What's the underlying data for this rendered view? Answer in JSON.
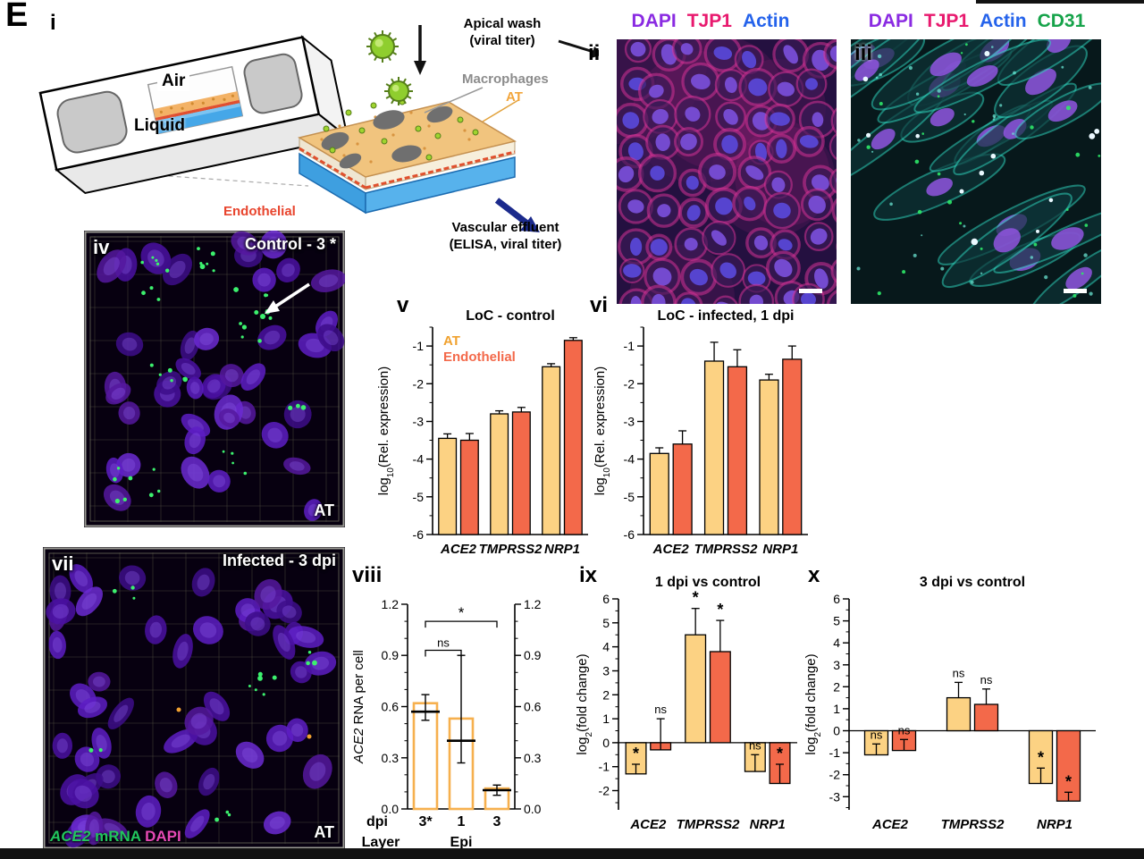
{
  "figure_label": "E",
  "schematic": {
    "panel_label": "i",
    "air": "Air",
    "liquid": "Liquid",
    "apical_wash_line1": "Apical wash",
    "apical_wash_line2": "(viral titer)",
    "macrophages": "Macrophages",
    "at": "AT",
    "endothelial": "Endothelial",
    "vascular_line1": "Vascular effluent",
    "vascular_line2": "(ELISA, viral titer)"
  },
  "panel_ii": {
    "label": "ii",
    "markers": [
      {
        "text": "DAPI",
        "color": "#8a2be2"
      },
      {
        "text": "TJP1",
        "color": "#e8196e"
      },
      {
        "text": "Actin",
        "color": "#2563eb"
      }
    ]
  },
  "panel_iii": {
    "label": "iii",
    "markers": [
      {
        "text": "DAPI",
        "color": "#8a2be2"
      },
      {
        "text": "TJP1",
        "color": "#e8196e"
      },
      {
        "text": "Actin",
        "color": "#2563eb"
      },
      {
        "text": "CD31",
        "color": "#16a34a"
      }
    ]
  },
  "panel_iv": {
    "label": "iv",
    "title": "Control - 3 *",
    "corner_label": "AT"
  },
  "panel_vii": {
    "label": "vii",
    "title": "Infected - 3 dpi",
    "corner_label": "AT",
    "caption": [
      {
        "text": "ACE2",
        "color": "#22c55e",
        "italic": true
      },
      {
        "text": " mRNA ",
        "color": "#22c55e"
      },
      {
        "text": "DAPI",
        "color": "#e649b5"
      }
    ]
  },
  "chart_data": [
    {
      "id": "v",
      "panel_label": "v",
      "type": "bar",
      "title": "LoC - control",
      "ylabel_parts": [
        {
          "text": "log"
        },
        {
          "text": "10",
          "sub": true
        },
        {
          "text": "(Rel. expression)"
        }
      ],
      "ylim": [
        -6,
        -0.5
      ],
      "yticks": [
        -1,
        -2,
        -3,
        -4,
        -5,
        -6
      ],
      "baseline": -6,
      "categories": [
        "ACE2",
        "TMPRSS2",
        "NRP1"
      ],
      "legend": true,
      "series": [
        {
          "name": "AT",
          "color": "#fcd283",
          "values": [
            -3.45,
            -2.8,
            -1.55
          ],
          "errors": [
            0.12,
            0.08,
            0.08
          ]
        },
        {
          "name": "Endothelial",
          "color": "#f3694a",
          "values": [
            -3.5,
            -2.75,
            -0.85
          ],
          "errors": [
            0.18,
            0.12,
            0.07
          ]
        }
      ]
    },
    {
      "id": "vi",
      "panel_label": "vi",
      "type": "bar",
      "title": "LoC - infected, 1 dpi",
      "ylabel_parts": [
        {
          "text": "log"
        },
        {
          "text": "10",
          "sub": true
        },
        {
          "text": "(Rel. expression)"
        }
      ],
      "ylim": [
        -6,
        -0.5
      ],
      "yticks": [
        -1,
        -2,
        -3,
        -4,
        -5,
        -6
      ],
      "baseline": -6,
      "categories": [
        "ACE2",
        "TMPRSS2",
        "NRP1"
      ],
      "legend": false,
      "series": [
        {
          "name": "AT",
          "color": "#fcd283",
          "values": [
            -3.85,
            -1.4,
            -1.9
          ],
          "errors": [
            0.15,
            0.5,
            0.15
          ]
        },
        {
          "name": "Endothelial",
          "color": "#f3694a",
          "values": [
            -3.6,
            -1.55,
            -1.35
          ],
          "errors": [
            0.35,
            0.45,
            0.35
          ]
        }
      ]
    },
    {
      "id": "viii",
      "panel_label": "viii",
      "type": "bar-open",
      "ylabel_parts": [
        {
          "text": "ACE2",
          "italic": true
        },
        {
          "text": " RNA per cell"
        }
      ],
      "ylim": [
        0,
        1.2
      ],
      "yticks": [
        0,
        0.3,
        0.6,
        0.9,
        1.2
      ],
      "right_axis": true,
      "bar_color": "#f6b04e",
      "categories": [
        "3*",
        "1",
        "3"
      ],
      "values": [
        0.62,
        0.53,
        0.12
      ],
      "means": [
        0.57,
        0.4,
        0.11
      ],
      "err_low": [
        0.05,
        0.13,
        0.03
      ],
      "err_high": [
        0.1,
        0.5,
        0.03
      ],
      "x_row_label": "dpi",
      "layer_row_label": "Layer",
      "layer_value": "Epi",
      "brackets": [
        {
          "from": 0,
          "to": 1,
          "label": "ns",
          "y": 0.93
        },
        {
          "from": 0,
          "to": 2,
          "label": "*",
          "y": 1.1
        }
      ]
    },
    {
      "id": "ix",
      "panel_label": "ix",
      "type": "bar",
      "title": "1 dpi vs control",
      "ylabel_parts": [
        {
          "text": "log"
        },
        {
          "text": "2",
          "sub": true
        },
        {
          "text": "(fold change)"
        }
      ],
      "ylim": [
        -2.8,
        6
      ],
      "yticks": [
        6,
        5,
        4,
        3,
        2,
        1,
        0,
        -1,
        -2
      ],
      "baseline": 0,
      "categories": [
        "ACE2",
        "TMPRSS2",
        "NRP1"
      ],
      "legend": false,
      "series": [
        {
          "name": "AT",
          "color": "#fcd283",
          "values": [
            -1.3,
            4.5,
            -1.2
          ],
          "errors": [
            0.4,
            1.1,
            0.7
          ],
          "sig": [
            "*",
            "*",
            "ns"
          ]
        },
        {
          "name": "Endothelial",
          "color": "#f3694a",
          "values": [
            -0.3,
            3.8,
            -1.7
          ],
          "errors": [
            1.3,
            1.3,
            0.8
          ],
          "sig": [
            "ns",
            "*",
            "*"
          ]
        }
      ]
    },
    {
      "id": "x",
      "panel_label": "x",
      "type": "bar",
      "title": "3 dpi vs control",
      "ylabel_parts": [
        {
          "text": "log"
        },
        {
          "text": "2",
          "sub": true
        },
        {
          "text": "(fold change)"
        }
      ],
      "ylim": [
        -3.6,
        6
      ],
      "yticks": [
        6,
        5,
        4,
        3,
        2,
        1,
        0,
        -1,
        -2,
        -3
      ],
      "baseline": 0,
      "categories": [
        "ACE2",
        "TMPRSS2",
        "NRP1"
      ],
      "legend": false,
      "series": [
        {
          "name": "AT",
          "color": "#fcd283",
          "values": [
            -1.1,
            1.5,
            -2.4
          ],
          "errors": [
            0.5,
            0.7,
            0.7
          ],
          "sig": [
            "ns",
            "ns",
            "*"
          ]
        },
        {
          "name": "Endothelial",
          "color": "#f3694a",
          "values": [
            -0.9,
            1.2,
            -3.2
          ],
          "errors": [
            0.5,
            0.7,
            0.4
          ],
          "sig": [
            "ns",
            "ns",
            "*"
          ]
        }
      ]
    }
  ]
}
